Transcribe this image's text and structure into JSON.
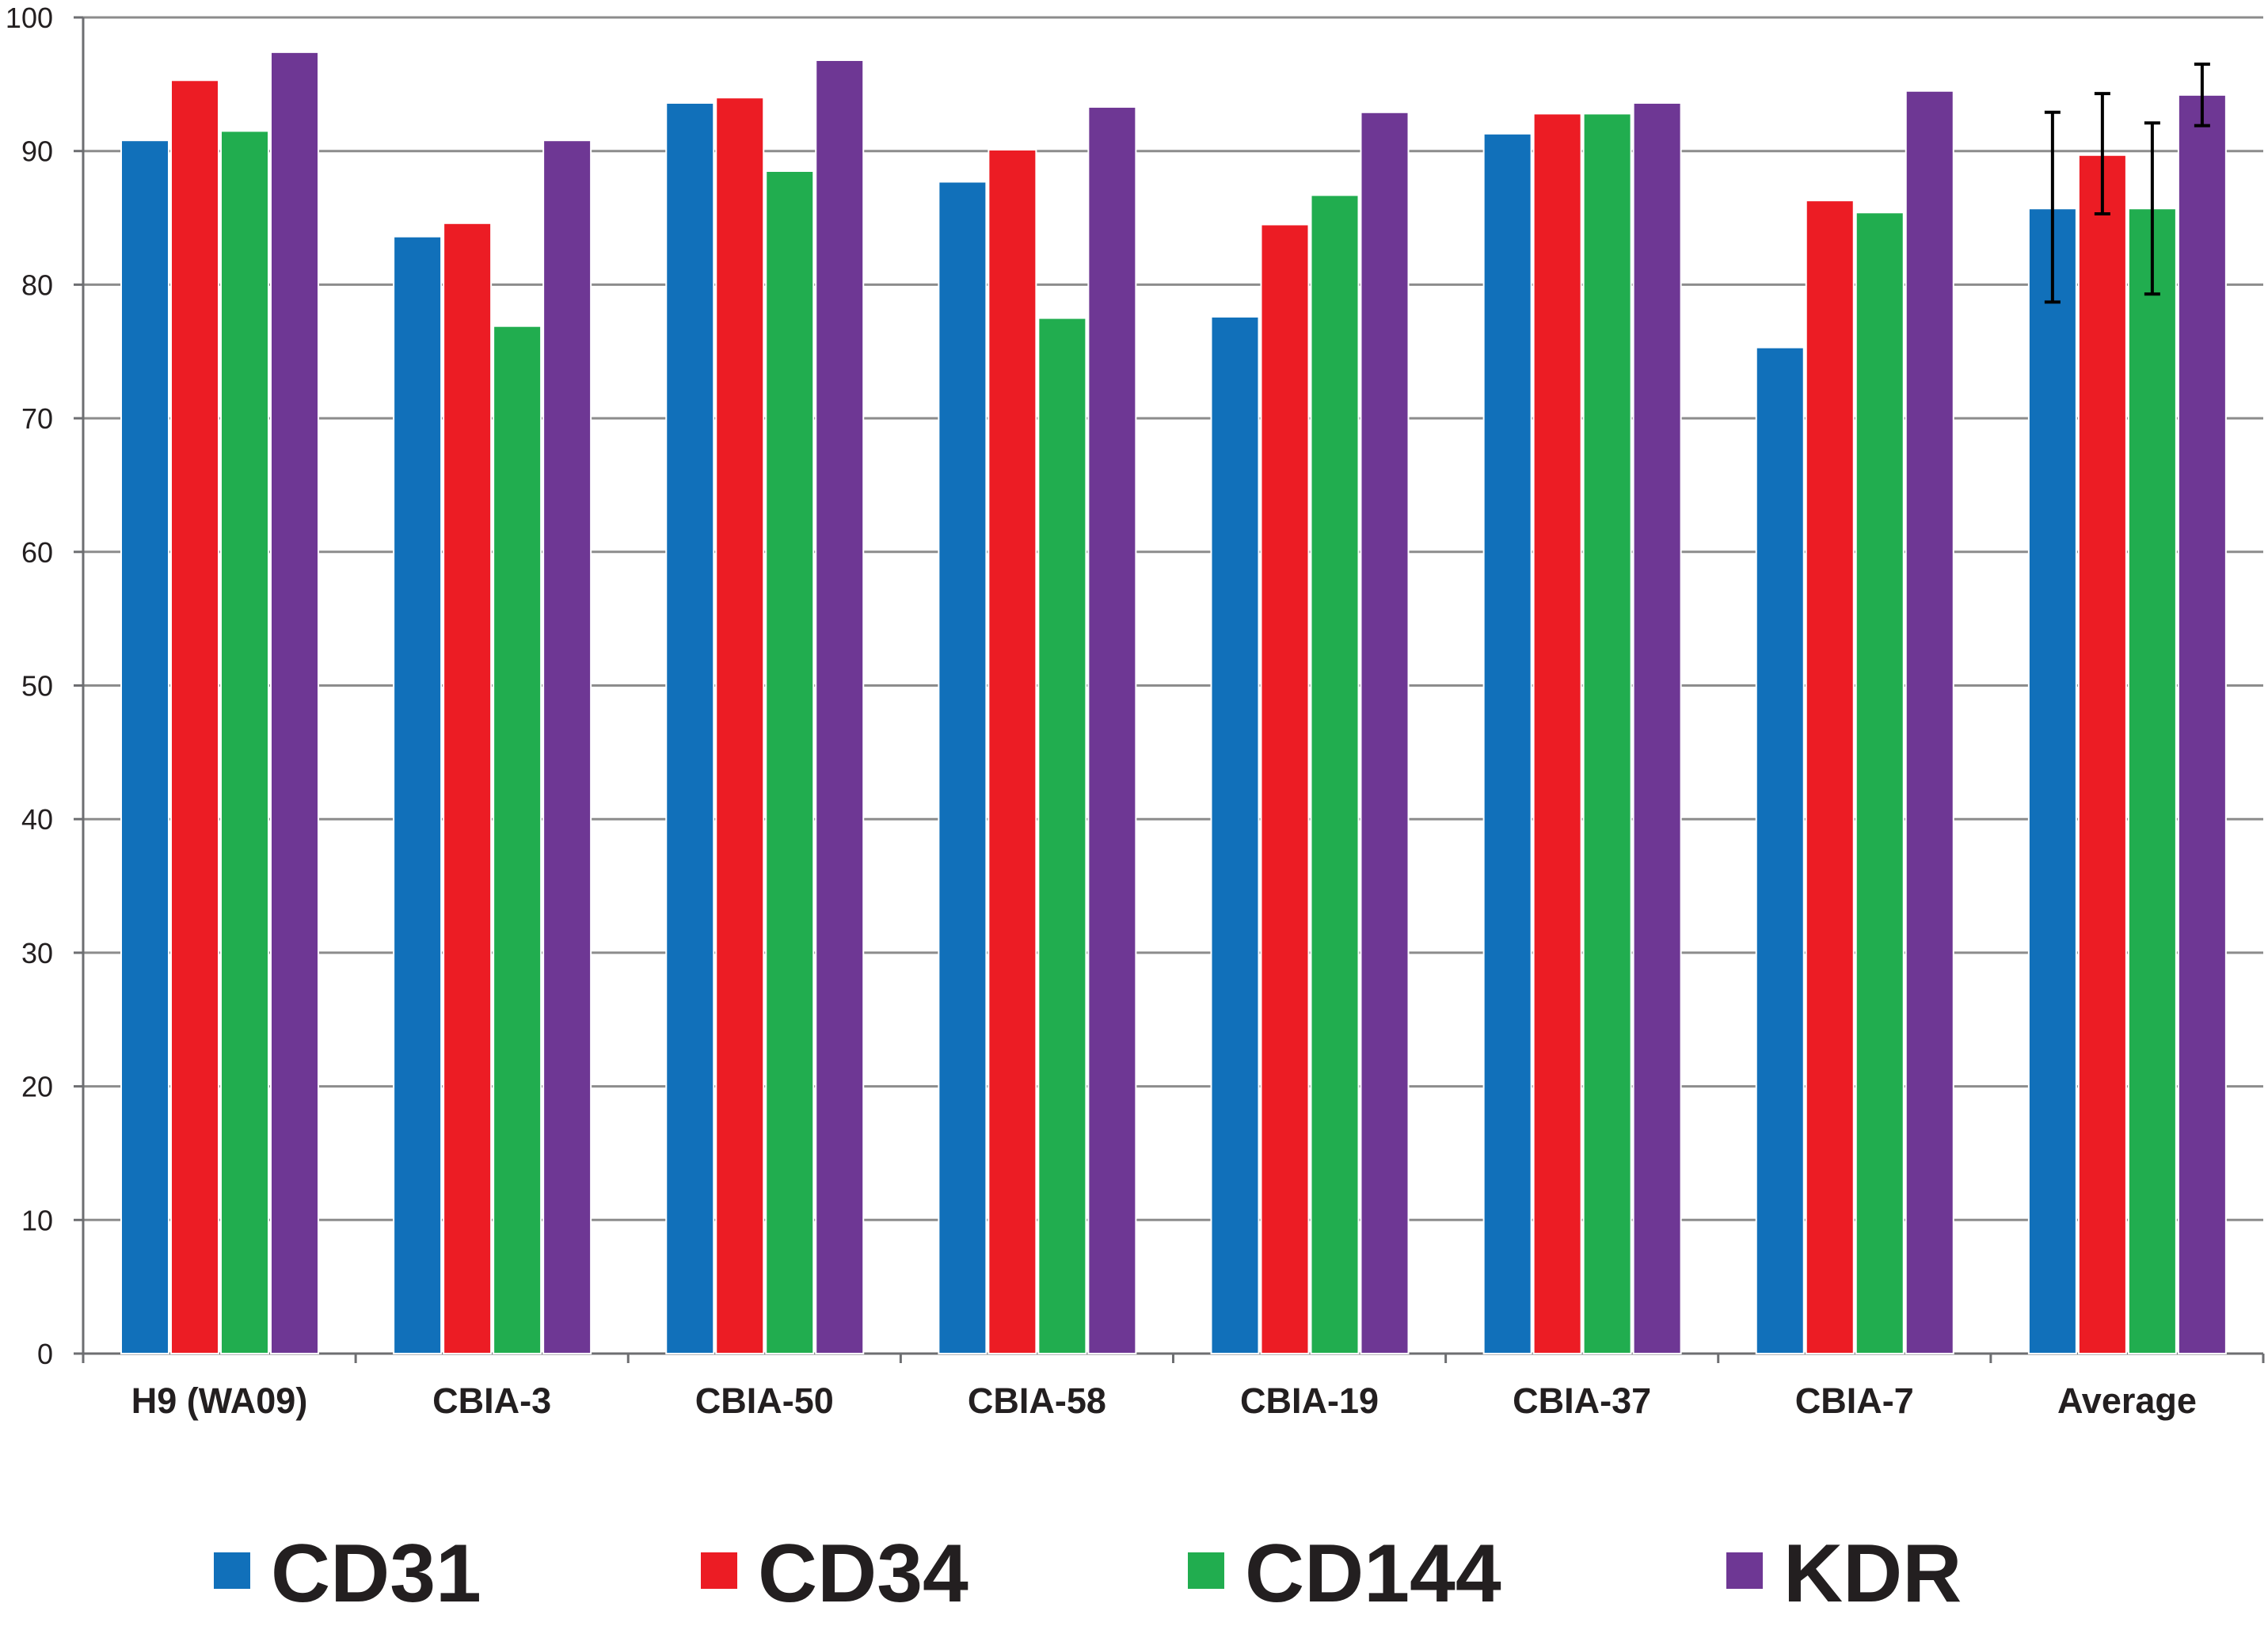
{
  "chart_data": {
    "type": "bar",
    "title": "",
    "xlabel": "",
    "ylabel": "",
    "ylim": [
      0,
      100
    ],
    "yticks": [
      0,
      10,
      20,
      30,
      40,
      50,
      60,
      70,
      80,
      90,
      100
    ],
    "grid": true,
    "legend_position": "bottom",
    "categories": [
      "H9 (WA09)",
      "CBIA-3",
      "CBIA-50",
      "CBIA-58",
      "CBIA-19",
      "CBIA-37",
      "CBIA-7",
      "Average"
    ],
    "series": [
      {
        "name": "CD31",
        "color": "#1170ba",
        "values": [
          90.8,
          83.6,
          93.6,
          87.7,
          77.6,
          91.3,
          75.3,
          85.7
        ]
      },
      {
        "name": "CD34",
        "color": "#ec1c24",
        "values": [
          95.3,
          84.6,
          94.0,
          90.1,
          84.5,
          92.8,
          86.3,
          89.7
        ]
      },
      {
        "name": "CD144",
        "color": "#21ad4f",
        "values": [
          91.5,
          76.9,
          88.5,
          77.5,
          86.7,
          92.8,
          85.4,
          85.7
        ]
      },
      {
        "name": "KDR",
        "color": "#6e3794",
        "values": [
          97.4,
          90.8,
          96.8,
          93.3,
          92.9,
          93.6,
          94.5,
          94.2
        ]
      }
    ],
    "error_bars": {
      "category": "Average",
      "lower": [
        78.7,
        85.3,
        79.3,
        91.9
      ],
      "upper": [
        92.9,
        94.3,
        92.1,
        96.5
      ]
    }
  },
  "colors": {
    "grid": "#8c8c8c",
    "axis": "#6d6e71",
    "text": "#231f20",
    "bar_edge": "#ffffff"
  }
}
